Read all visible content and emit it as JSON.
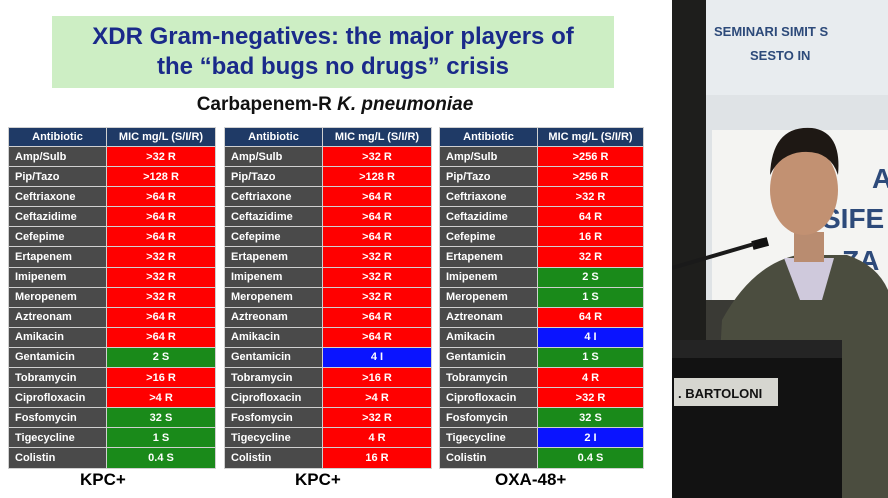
{
  "slide": {
    "title_line1": "XDR Gram-negatives: the major players of",
    "title_line2": "the “bad bugs no drugs” crisis",
    "subtitle_prefix": "Carbapenem-R ",
    "subtitle_species": "K. pneumoniae"
  },
  "colors": {
    "R": "#ff0000",
    "S": "#1a8a1a",
    "I": "#0a14ff",
    "header": "#1f3a66",
    "name_cell": "#4a4a4a",
    "title_bg": "#cdeec4",
    "title_text": "#1a2a8a"
  },
  "tables": [
    {
      "header_antibiotic": "Antibiotic",
      "header_mic": "MIC mg/L (S/I/R)",
      "label": "KPC+",
      "rows": [
        {
          "antibiotic": "Amp/Sulb",
          "mic": ">32 R",
          "cat": "R"
        },
        {
          "antibiotic": "Pip/Tazo",
          "mic": ">128 R",
          "cat": "R"
        },
        {
          "antibiotic": "Ceftriaxone",
          "mic": ">64 R",
          "cat": "R"
        },
        {
          "antibiotic": "Ceftazidime",
          "mic": ">64 R",
          "cat": "R"
        },
        {
          "antibiotic": "Cefepime",
          "mic": ">64 R",
          "cat": "R"
        },
        {
          "antibiotic": "Ertapenem",
          "mic": ">32 R",
          "cat": "R"
        },
        {
          "antibiotic": "Imipenem",
          "mic": ">32 R",
          "cat": "R"
        },
        {
          "antibiotic": "Meropenem",
          "mic": ">32 R",
          "cat": "R"
        },
        {
          "antibiotic": "Aztreonam",
          "mic": ">64 R",
          "cat": "R"
        },
        {
          "antibiotic": "Amikacin",
          "mic": ">64 R",
          "cat": "R"
        },
        {
          "antibiotic": "Gentamicin",
          "mic": "2 S",
          "cat": "S"
        },
        {
          "antibiotic": "Tobramycin",
          "mic": ">16 R",
          "cat": "R"
        },
        {
          "antibiotic": "Ciprofloxacin",
          "mic": ">4 R",
          "cat": "R"
        },
        {
          "antibiotic": "Fosfomycin",
          "mic": "32 S",
          "cat": "S"
        },
        {
          "antibiotic": "Tigecycline",
          "mic": "1 S",
          "cat": "S"
        },
        {
          "antibiotic": "Colistin",
          "mic": "0.4 S",
          "cat": "S"
        }
      ]
    },
    {
      "header_antibiotic": "Antibiotic",
      "header_mic": "MIC mg/L (S/I/R)",
      "label": "KPC+",
      "rows": [
        {
          "antibiotic": "Amp/Sulb",
          "mic": ">32 R",
          "cat": "R"
        },
        {
          "antibiotic": "Pip/Tazo",
          "mic": ">128 R",
          "cat": "R"
        },
        {
          "antibiotic": "Ceftriaxone",
          "mic": ">64 R",
          "cat": "R"
        },
        {
          "antibiotic": "Ceftazidime",
          "mic": ">64 R",
          "cat": "R"
        },
        {
          "antibiotic": "Cefepime",
          "mic": ">64 R",
          "cat": "R"
        },
        {
          "antibiotic": "Ertapenem",
          "mic": ">32 R",
          "cat": "R"
        },
        {
          "antibiotic": "Imipenem",
          "mic": ">32 R",
          "cat": "R"
        },
        {
          "antibiotic": "Meropenem",
          "mic": ">32 R",
          "cat": "R"
        },
        {
          "antibiotic": "Aztreonam",
          "mic": ">64 R",
          "cat": "R"
        },
        {
          "antibiotic": "Amikacin",
          "mic": ">64 R",
          "cat": "R"
        },
        {
          "antibiotic": "Gentamicin",
          "mic": "4 I",
          "cat": "I"
        },
        {
          "antibiotic": "Tobramycin",
          "mic": ">16 R",
          "cat": "R"
        },
        {
          "antibiotic": "Ciprofloxacin",
          "mic": ">4 R",
          "cat": "R"
        },
        {
          "antibiotic": "Fosfomycin",
          "mic": ">32 R",
          "cat": "R"
        },
        {
          "antibiotic": "Tigecycline",
          "mic": "4 R",
          "cat": "R"
        },
        {
          "antibiotic": "Colistin",
          "mic": "16 R",
          "cat": "R"
        }
      ]
    },
    {
      "header_antibiotic": "Antibiotic",
      "header_mic": "MIC mg/L (S/I/R)",
      "label": "OXA-48+",
      "rows": [
        {
          "antibiotic": "Amp/Sulb",
          "mic": ">256 R",
          "cat": "R"
        },
        {
          "antibiotic": "Pip/Tazo",
          "mic": ">256 R",
          "cat": "R"
        },
        {
          "antibiotic": "Ceftriaxone",
          "mic": ">32 R",
          "cat": "R"
        },
        {
          "antibiotic": "Ceftazidime",
          "mic": "64 R",
          "cat": "R"
        },
        {
          "antibiotic": "Cefepime",
          "mic": "16 R",
          "cat": "R"
        },
        {
          "antibiotic": "Ertapenem",
          "mic": "32 R",
          "cat": "R"
        },
        {
          "antibiotic": "Imipenem",
          "mic": "2 S",
          "cat": "S"
        },
        {
          "antibiotic": "Meropenem",
          "mic": "1 S",
          "cat": "S"
        },
        {
          "antibiotic": "Aztreonam",
          "mic": "64 R",
          "cat": "R"
        },
        {
          "antibiotic": "Amikacin",
          "mic": "4 I",
          "cat": "I"
        },
        {
          "antibiotic": "Gentamicin",
          "mic": "1 S",
          "cat": "S"
        },
        {
          "antibiotic": "Tobramycin",
          "mic": "4 R",
          "cat": "R"
        },
        {
          "antibiotic": "Ciprofloxacin",
          "mic": ">32 R",
          "cat": "R"
        },
        {
          "antibiotic": "Fosfomycin",
          "mic": "32 S",
          "cat": "S"
        },
        {
          "antibiotic": "Tigecycline",
          "mic": "2 I",
          "cat": "I"
        },
        {
          "antibiotic": "Colistin",
          "mic": "0.4 S",
          "cat": "S"
        }
      ]
    }
  ],
  "photo": {
    "banner_line1": "SEMINARI SIMIT S",
    "banner_line2": "SESTO IN",
    "side_text_lines": [
      "A",
      "SIFE",
      "ZA"
    ],
    "nameplate": ". BARTOLONI"
  }
}
